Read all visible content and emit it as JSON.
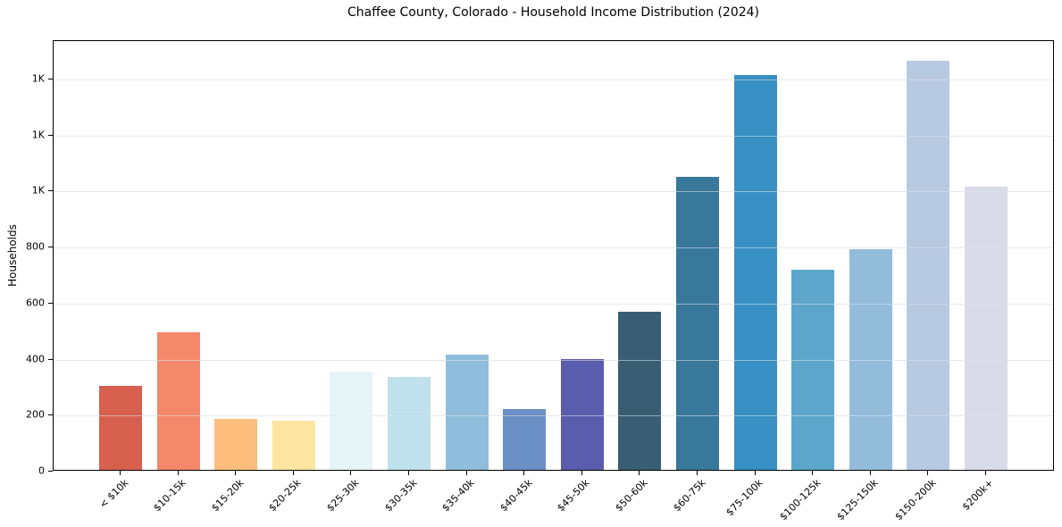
{
  "chart_data": {
    "type": "bar",
    "title": "Chaffee County, Colorado - Household Income Distribution (2024)",
    "xlabel": "",
    "ylabel": "Households",
    "categories": [
      "< $10k",
      "$10-15k",
      "$15-20k",
      "$20-25k",
      "$25-30k",
      "$30-35k",
      "$35-40k",
      "$40-45k",
      "$45-50k",
      "$50-60k",
      "$60-75k",
      "$75-100k",
      "$100-125k",
      "$125-150k",
      "$150-200k",
      "$200k+"
    ],
    "values": [
      300,
      490,
      182,
      177,
      352,
      333,
      412,
      218,
      394,
      565,
      1045,
      1410,
      713,
      789,
      1462,
      1012
    ],
    "bar_colors": [
      "#d6604d",
      "#f4886b",
      "#fdbd7d",
      "#fee5a1",
      "#e7f4f7",
      "#bee1ec",
      "#8fbddb",
      "#6a90c5",
      "#5a5cad",
      "#395e73",
      "#38789b",
      "#3890c4",
      "#5ca6cb",
      "#93bcdb",
      "#b8cae2",
      "#d9dbe9"
    ],
    "ylim": [
      0,
      1537
    ],
    "ytick_values": [
      0,
      200,
      400,
      600,
      800,
      1000,
      1200,
      1400
    ],
    "ytick_labels": [
      "0",
      "200",
      "400",
      "600",
      "800",
      "1K",
      "1K",
      "1K"
    ],
    "grid": "horizontal",
    "legend": "none",
    "background_color": "#ffffff",
    "frame_color": "#000000",
    "gridline_color": "#e9ecef"
  }
}
